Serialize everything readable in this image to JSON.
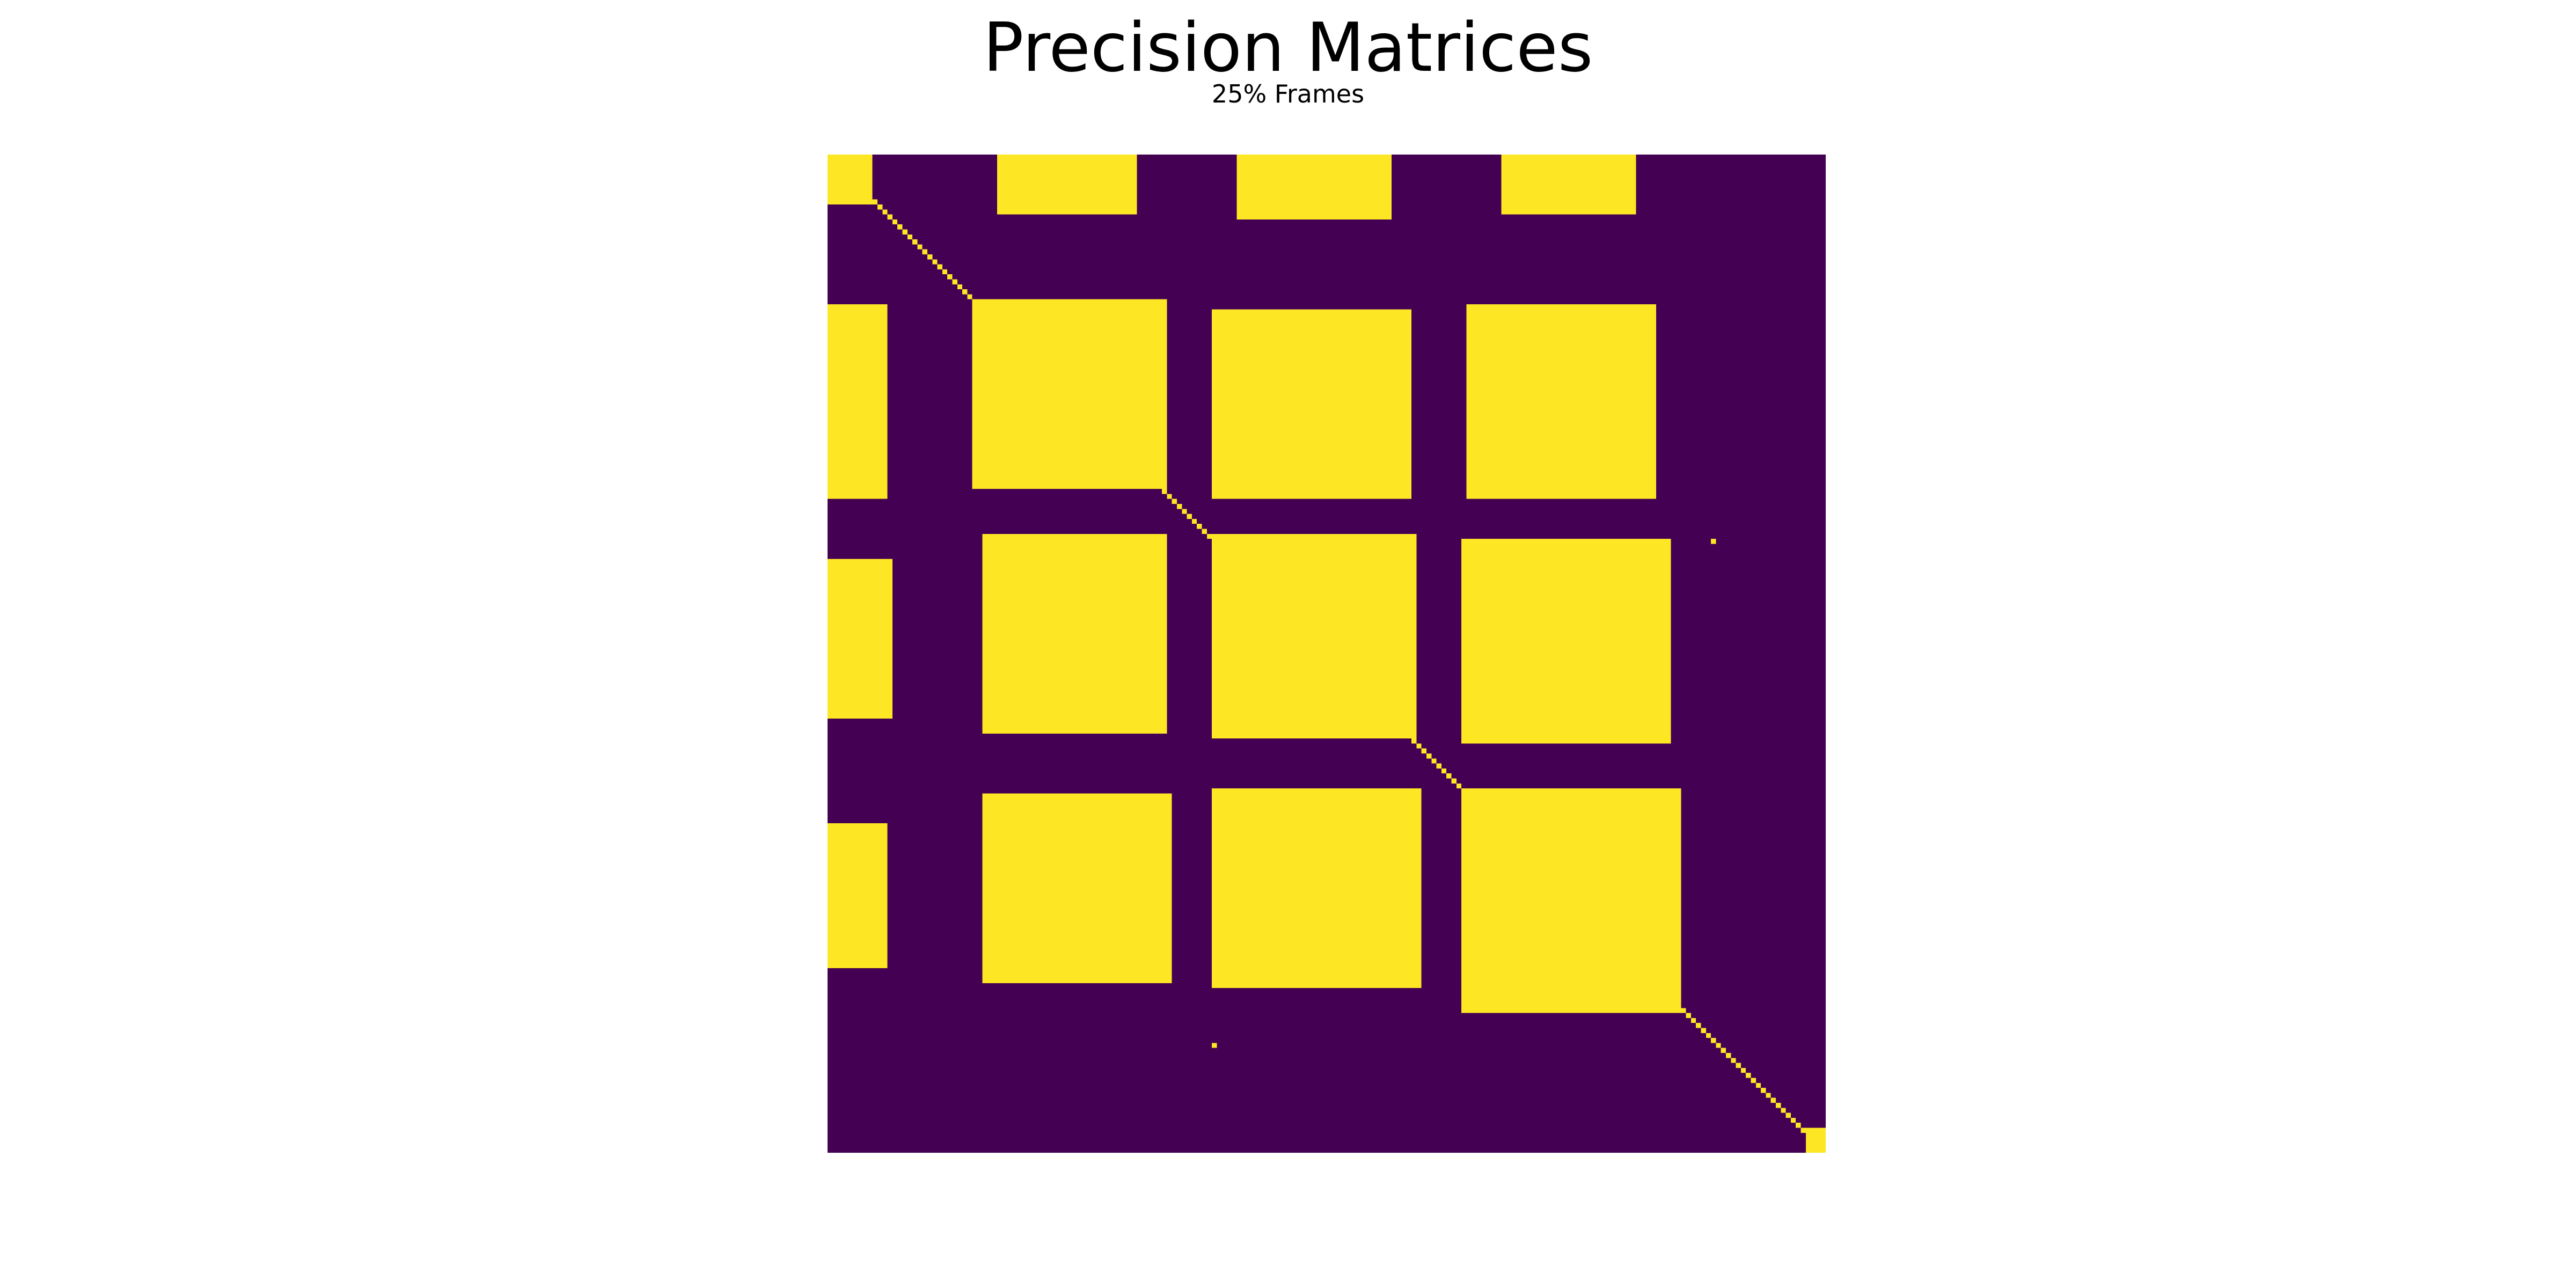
{
  "chart_data": {
    "type": "heatmap",
    "title": "Precision Matrices",
    "subtitle": "25% Frames",
    "xlabel": "",
    "ylabel": "",
    "axes_visible": false,
    "colorbar": false,
    "grid": false,
    "matrix_size": 200,
    "value_range": [
      0,
      1
    ],
    "colors": {
      "0": "#440154",
      "1": "#fde725"
    },
    "description_of_values": "binary sparsity pattern: 1 = nonzero precision entry, 0 = zero",
    "diagonal": 1,
    "blocks": [
      {
        "rows": [
          0,
          9
        ],
        "cols": [
          0,
          8
        ],
        "value": 1
      },
      {
        "rows": [
          0,
          11
        ],
        "cols": [
          34,
          61
        ],
        "value": 1
      },
      {
        "rows": [
          0,
          12
        ],
        "cols": [
          82,
          112
        ],
        "value": 1
      },
      {
        "rows": [
          0,
          11
        ],
        "cols": [
          135,
          161
        ],
        "value": 1
      },
      {
        "rows": [
          30,
          68
        ],
        "cols": [
          0,
          11
        ],
        "value": 1
      },
      {
        "rows": [
          29,
          66
        ],
        "cols": [
          29,
          67
        ],
        "value": 1
      },
      {
        "rows": [
          31,
          68
        ],
        "cols": [
          77,
          116
        ],
        "value": 1
      },
      {
        "rows": [
          30,
          68
        ],
        "cols": [
          128,
          165
        ],
        "value": 1
      },
      {
        "rows": [
          81,
          112
        ],
        "cols": [
          0,
          12
        ],
        "value": 1
      },
      {
        "rows": [
          76,
          115
        ],
        "cols": [
          31,
          67
        ],
        "value": 1
      },
      {
        "rows": [
          76,
          116
        ],
        "cols": [
          77,
          117
        ],
        "value": 1
      },
      {
        "rows": [
          77,
          117
        ],
        "cols": [
          127,
          168
        ],
        "value": 1
      },
      {
        "rows": [
          134,
          162
        ],
        "cols": [
          0,
          11
        ],
        "value": 1
      },
      {
        "rows": [
          128,
          165
        ],
        "cols": [
          31,
          68
        ],
        "value": 1
      },
      {
        "rows": [
          127,
          166
        ],
        "cols": [
          77,
          118
        ],
        "value": 1
      },
      {
        "rows": [
          127,
          171
        ],
        "cols": [
          127,
          170
        ],
        "value": 1
      },
      {
        "rows": [
          195,
          199
        ],
        "cols": [
          196,
          199
        ],
        "value": 1
      },
      {
        "rows": [
          77,
          77
        ],
        "cols": [
          177,
          177
        ],
        "value": 1
      },
      {
        "rows": [
          178,
          178
        ],
        "cols": [
          77,
          77
        ],
        "value": 1
      }
    ]
  }
}
